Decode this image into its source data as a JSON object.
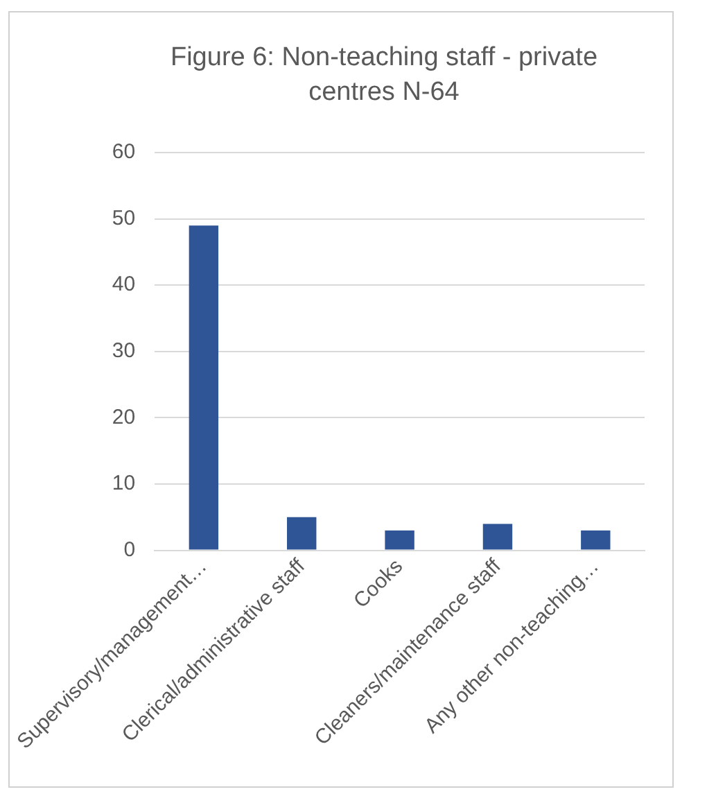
{
  "chart_data": {
    "type": "bar",
    "title": "Figure 6: Non-teaching staff - private centres N-64",
    "categories": [
      "Supervisory/management…",
      "Clerical/administrative staff",
      "Cooks",
      "Cleaners/maintenance staff",
      "Any other non-teaching…"
    ],
    "values": [
      49,
      5,
      3,
      4,
      3
    ],
    "color": "#2f5597",
    "ylim": [
      0,
      60
    ],
    "yticks": [
      0,
      10,
      20,
      30,
      40,
      50,
      60
    ],
    "grid": "y",
    "legend": false
  }
}
